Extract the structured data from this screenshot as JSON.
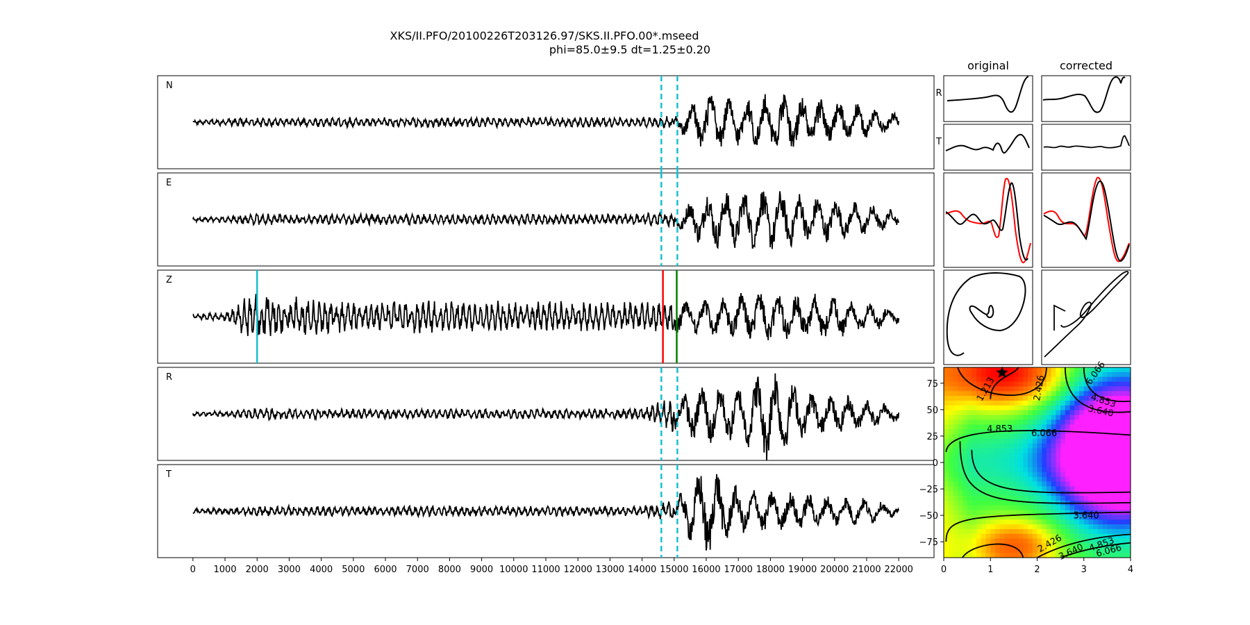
{
  "title_line1": "XKS/II.PFO/20100226T203126.97/SKS.II.PFO.00*.mseed",
  "title_line2": "phi=85.0±9.5 dt=1.25±0.20",
  "col_original": "original",
  "col_corrected": "corrected",
  "small_label_R": "R",
  "small_label_T": "T",
  "chart_data": [
    {
      "type": "line",
      "description": "three-component + rotated seismograms",
      "x_ticks": [
        "0",
        "1000",
        "2000",
        "3000",
        "4000",
        "5000",
        "6000",
        "7000",
        "8000",
        "9000",
        "10000",
        "11000",
        "12000",
        "13000",
        "14000",
        "15000",
        "16000",
        "17000",
        "18000",
        "19000",
        "20000",
        "21000",
        "22000"
      ],
      "xlim": [
        -1100,
        23100
      ],
      "x_range_data": [
        0,
        22000
      ],
      "series": [
        {
          "name": "N",
          "envelope": [
            0.04,
            0.07,
            0.1,
            0.08,
            0.09,
            0.1,
            0.09,
            0.1,
            0.09,
            0.1,
            0.09,
            0.1,
            0.1,
            0.1,
            0.1,
            0.12,
            0.6,
            0.45,
            0.55,
            0.5,
            0.45,
            0.3,
            0.15
          ]
        },
        {
          "name": "E",
          "envelope": [
            0.04,
            0.06,
            0.12,
            0.1,
            0.1,
            0.11,
            0.1,
            0.11,
            0.1,
            0.1,
            0.1,
            0.1,
            0.1,
            0.1,
            0.12,
            0.15,
            0.55,
            0.55,
            0.6,
            0.5,
            0.4,
            0.3,
            0.15
          ]
        },
        {
          "name": "Z",
          "envelope": [
            0.05,
            0.1,
            0.55,
            0.4,
            0.35,
            0.3,
            0.3,
            0.32,
            0.3,
            0.3,
            0.3,
            0.3,
            0.3,
            0.28,
            0.28,
            0.3,
            0.35,
            0.45,
            0.5,
            0.45,
            0.4,
            0.3,
            0.15
          ]
        },
        {
          "name": "R",
          "envelope": [
            0.04,
            0.06,
            0.12,
            0.1,
            0.1,
            0.1,
            0.1,
            0.1,
            0.1,
            0.1,
            0.1,
            0.1,
            0.1,
            0.1,
            0.12,
            0.35,
            0.6,
            0.5,
            0.95,
            0.45,
            0.4,
            0.3,
            0.15
          ]
        },
        {
          "name": "T",
          "envelope": [
            0.05,
            0.08,
            0.1,
            0.1,
            0.1,
            0.1,
            0.1,
            0.1,
            0.1,
            0.1,
            0.1,
            0.1,
            0.1,
            0.1,
            0.1,
            0.2,
            0.95,
            0.45,
            0.4,
            0.35,
            0.3,
            0.25,
            0.1
          ]
        }
      ],
      "window_dashed_x": [
        14600,
        15100
      ],
      "panel_Z_markers": [
        {
          "x": 2000,
          "color": "#17becf"
        },
        {
          "x": 14650,
          "color": "#ff0000"
        },
        {
          "x": 15080,
          "color": "#008000"
        }
      ],
      "colors": {
        "trace": "#000000",
        "window": "#17becf"
      }
    },
    {
      "type": "heatmap",
      "description": "splitting parameter misfit grid",
      "x_ticks": [
        "0",
        "1",
        "2",
        "3",
        "4"
      ],
      "xlim": [
        0,
        4
      ],
      "y_ticks": [
        "75",
        "50",
        "25",
        "0",
        "−25",
        "−50",
        "−75"
      ],
      "y_tick_values": [
        75,
        50,
        25,
        0,
        -25,
        -50,
        -75
      ],
      "ylim": [
        -90,
        90
      ],
      "contour_labels": [
        "1.213",
        "2.426",
        "3.640",
        "4.853",
        "6.066"
      ],
      "best_fit": {
        "dt": 1.25,
        "phi": 85.0
      }
    }
  ]
}
